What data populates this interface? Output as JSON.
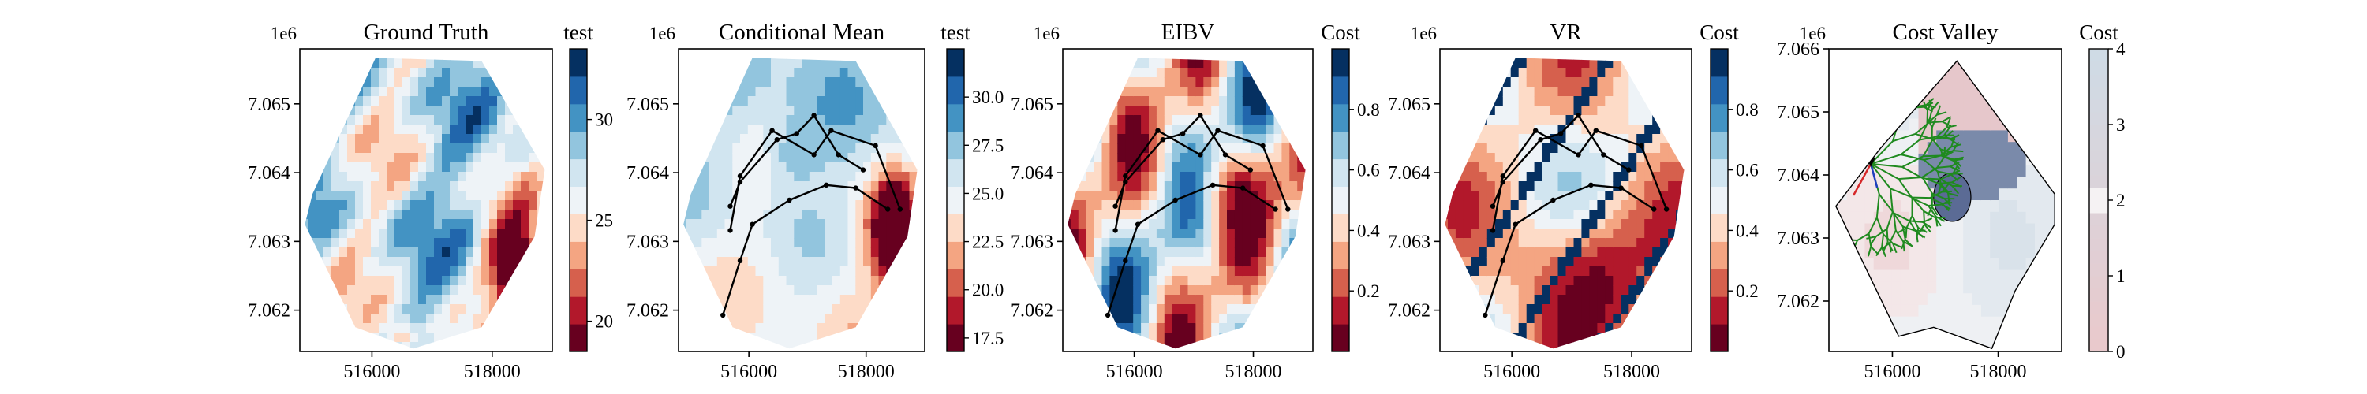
{
  "figure": {
    "background": "#ffffff"
  },
  "chart_data": [
    {
      "type": "heatmap",
      "title": "Ground Truth",
      "xlabel": "",
      "ylabel": "",
      "x_offset_label": "",
      "y_offset_label": "1e6",
      "xticks": [
        516000,
        518000
      ],
      "yticks": [
        7.062,
        7.063,
        7.064,
        7.065
      ],
      "xlim": [
        514800,
        519000
      ],
      "ylim": [
        7.0614,
        7.0658
      ],
      "colorbar": {
        "label": "test",
        "ticks": [
          20,
          25,
          30
        ],
        "range": [
          18.5,
          33.5
        ],
        "scheme": "RdBu"
      },
      "overlay": "none"
    },
    {
      "type": "heatmap",
      "title": "Conditional Mean",
      "xlabel": "",
      "ylabel": "",
      "x_offset_label": "",
      "y_offset_label": "1e6",
      "xticks": [
        516000,
        518000
      ],
      "yticks": [
        7.062,
        7.063,
        7.064,
        7.065
      ],
      "xlim": [
        514800,
        519000
      ],
      "ylim": [
        7.0614,
        7.0658
      ],
      "colorbar": {
        "label": "test",
        "ticks": [
          17.5,
          20.0,
          22.5,
          25.0,
          27.5,
          30.0
        ],
        "range": [
          16.8,
          32.5
        ],
        "scheme": "RdBu"
      },
      "overlay": "path"
    },
    {
      "type": "heatmap",
      "title": "EIBV",
      "xlabel": "",
      "ylabel": "",
      "x_offset_label": "",
      "y_offset_label": "1e6",
      "xticks": [
        516000,
        518000
      ],
      "yticks": [
        7.062,
        7.063,
        7.064,
        7.065
      ],
      "xlim": [
        514800,
        519000
      ],
      "ylim": [
        7.0614,
        7.0658
      ],
      "colorbar": {
        "label": "Cost",
        "ticks": [
          0.2,
          0.4,
          0.6,
          0.8
        ],
        "range": [
          0.0,
          1.0
        ],
        "scheme": "RdBu"
      },
      "overlay": "path"
    },
    {
      "type": "heatmap",
      "title": "VR",
      "xlabel": "",
      "ylabel": "",
      "x_offset_label": "",
      "y_offset_label": "1e6",
      "xticks": [
        516000,
        518000
      ],
      "yticks": [
        7.062,
        7.063,
        7.064,
        7.065
      ],
      "xlim": [
        514800,
        519000
      ],
      "ylim": [
        7.0614,
        7.0658
      ],
      "colorbar": {
        "label": "Cost",
        "ticks": [
          0.2,
          0.4,
          0.6,
          0.8
        ],
        "range": [
          0.0,
          1.0
        ],
        "scheme": "RdBu"
      },
      "overlay": "path"
    },
    {
      "type": "heatmap",
      "title": "Cost Valley",
      "xlabel": "",
      "ylabel": "",
      "x_offset_label": "",
      "y_offset_label": "1e6",
      "xticks": [
        516000,
        518000
      ],
      "yticks": [
        7.062,
        7.063,
        7.064,
        7.065,
        7.066
      ],
      "xlim": [
        514800,
        519200
      ],
      "ylim": [
        7.0612,
        7.066
      ],
      "colorbar": {
        "label": "Cost",
        "ticks": [
          0,
          1,
          2,
          3,
          4
        ],
        "range": [
          0,
          4
        ],
        "scheme": "BuRd_light"
      },
      "overlay": "tree"
    }
  ]
}
